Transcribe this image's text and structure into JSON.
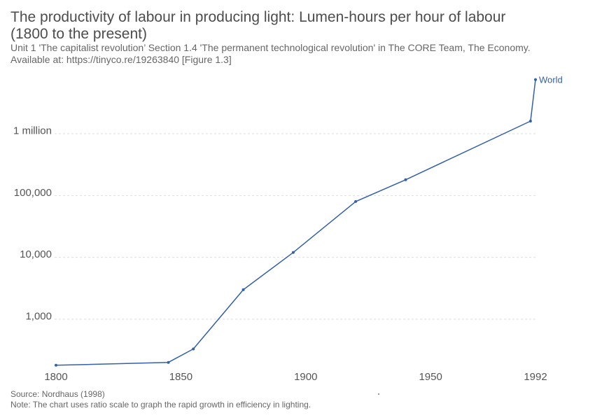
{
  "header": {
    "title_line1": "The productivity of labour in producing light: Lumen-hours per hour of labour",
    "title_line2": "(1800 to the present)",
    "subtitle_line1": "Unit 1 'The capitalist revolution’ Section 1.4 'The permanent technological revolution' in The CORE Team, The Economy.",
    "subtitle_line2": "Available at: https://tinyco.re/19263840 [Figure 1.3]"
  },
  "footer": {
    "source": "Source: Nordhaus (1998)",
    "note": "Note: The chart uses ratio scale to graph the rapid growth in efficiency in lighting."
  },
  "chart_data": {
    "type": "line",
    "y_scale": "log",
    "xlim": [
      1800,
      1992
    ],
    "ylim": [
      190,
      1500000
    ],
    "x_ticks": [
      {
        "value": 1800,
        "label": "1800"
      },
      {
        "value": 1850,
        "label": "1850"
      },
      {
        "value": 1900,
        "label": "1900"
      },
      {
        "value": 1950,
        "label": "1950"
      },
      {
        "value": 1992,
        "label": "1992"
      }
    ],
    "y_ticks": [
      {
        "value": 1000,
        "label": "1,000"
      },
      {
        "value": 10000,
        "label": "10,000"
      },
      {
        "value": 100000,
        "label": "100,000"
      },
      {
        "value": 1000000,
        "label": "1 million"
      }
    ],
    "grid": "horizontal dashed",
    "series": [
      {
        "name": "World",
        "color": "#3360a9",
        "points": [
          {
            "x": 1800,
            "y": 180
          },
          {
            "x": 1845,
            "y": 200
          },
          {
            "x": 1855,
            "y": 330
          },
          {
            "x": 1875,
            "y": 3000
          },
          {
            "x": 1895,
            "y": 12000
          },
          {
            "x": 1920,
            "y": 80000
          },
          {
            "x": 1940,
            "y": 180000
          },
          {
            "x": 1990,
            "y": 1600000
          },
          {
            "x": 1992,
            "y": 7500000
          }
        ]
      }
    ]
  }
}
